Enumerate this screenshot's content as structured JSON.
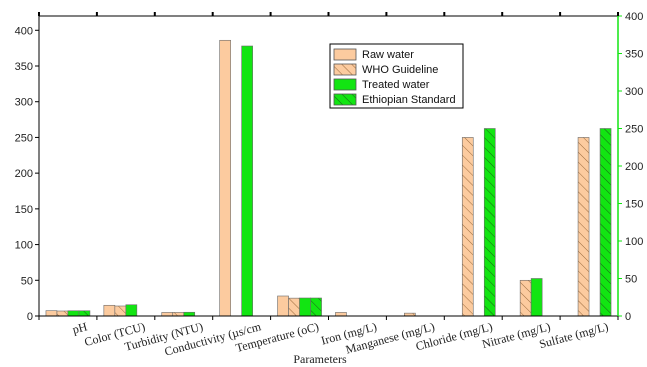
{
  "chart_data": {
    "type": "bar",
    "xlabel": "Parameters",
    "ylabel": "",
    "ylim": [
      0,
      420
    ],
    "ylim_right": [
      0,
      400
    ],
    "yticks_left": [
      "0",
      "50",
      "100",
      "150",
      "200",
      "250",
      "300",
      "350",
      "400"
    ],
    "yticks_right": [
      "0",
      "50",
      "100",
      "150",
      "200",
      "250",
      "300",
      "350",
      "400"
    ],
    "categories": [
      "pH",
      "Color (TCU)",
      "Turbidity (NTU)",
      "Conductivity (µs/cm)",
      "Temperature (oC)",
      "Iron (mg/L)",
      "Manganese (mg/L)",
      "Chloride (mg/L)",
      "Nitrate (mg/L)",
      "Sulfate (mg/L)"
    ],
    "category_display": [
      "pH",
      "Color (TCU)",
      "Turbidity (NTU)",
      "Conductivity (µs/cm",
      "Temperature (oC)",
      "Iron (mg/L)",
      "Manganese (mg/L)",
      "Chloride (mg/L)",
      "Nitrate (mg/L)",
      "Sulfate (mg/L)"
    ],
    "legend_position": "top-right",
    "series": [
      {
        "name": "Raw water",
        "axis": "left",
        "color": "#FCCB9F",
        "hatch": false,
        "values": [
          7.5,
          15,
          5,
          386,
          28,
          5,
          0,
          0,
          0,
          0
        ]
      },
      {
        "name": "WHO Guideline",
        "axis": "left",
        "color": "#FCCB9F",
        "hatch": true,
        "values": [
          7,
          14,
          5,
          0,
          25,
          0,
          4,
          250,
          50,
          250
        ]
      },
      {
        "name": "Treated water",
        "axis": "right",
        "color": "#12E512",
        "hatch": false,
        "values": [
          7,
          15,
          5,
          360,
          24,
          0,
          0,
          0,
          50,
          0
        ]
      },
      {
        "name": "Ethiopian Standard",
        "axis": "right",
        "color": "#12E512",
        "hatch": true,
        "values": [
          7,
          0,
          0,
          0,
          24,
          0,
          0,
          250,
          0,
          250
        ]
      }
    ],
    "grid": false
  }
}
